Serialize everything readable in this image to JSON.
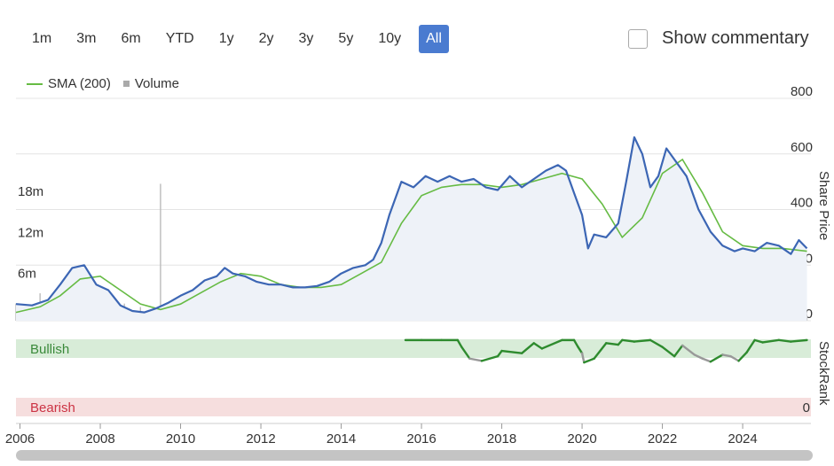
{
  "range_buttons": [
    {
      "label": "1m"
    },
    {
      "label": "3m"
    },
    {
      "label": "6m"
    },
    {
      "label": "YTD"
    },
    {
      "label": "1y"
    },
    {
      "label": "2y"
    },
    {
      "label": "3y"
    },
    {
      "label": "5y"
    },
    {
      "label": "10y"
    },
    {
      "label": "All",
      "active": true
    }
  ],
  "commentary": {
    "label": "Show commentary",
    "checked": false
  },
  "legend": {
    "sma_label": "SMA (200)",
    "volume_label": "Volume"
  },
  "colors": {
    "price": "#3c66b4",
    "sma": "#66bb44",
    "volume": "#bbbbbb",
    "bullish_band": "#d8ecd8",
    "bearish_band": "#f6dede",
    "bullish_text": "#3a8a3a",
    "bearish_text": "#cc3344",
    "stockrank_good": "#2e8b2e",
    "stockrank_neutral": "#999999",
    "active_button": "#4a7bd0"
  },
  "chart_data": [
    {
      "type": "line",
      "title": "",
      "x_ticks": [
        "2006",
        "2008",
        "2010",
        "2012",
        "2014",
        "2016",
        "2018",
        "2020",
        "2022",
        "2024"
      ],
      "y_right_label": "Share Price",
      "y_right_ticks": [
        "0.00",
        "200",
        "400",
        "600",
        "800"
      ],
      "y_right_range": [
        0,
        800
      ],
      "y_left_ticks": [
        "0",
        "6m",
        "12m",
        "18m"
      ],
      "x_range": [
        2005.9,
        2025.7
      ],
      "grid": true,
      "series": [
        {
          "name": "Share Price",
          "x": [
            2005.9,
            2006.3,
            2006.7,
            2007.0,
            2007.3,
            2007.6,
            2007.9,
            2008.2,
            2008.5,
            2008.8,
            2009.1,
            2009.4,
            2009.7,
            2010.0,
            2010.3,
            2010.6,
            2010.9,
            2011.1,
            2011.3,
            2011.6,
            2011.9,
            2012.2,
            2012.5,
            2012.8,
            2013.1,
            2013.4,
            2013.7,
            2014.0,
            2014.3,
            2014.6,
            2014.8,
            2015.0,
            2015.2,
            2015.5,
            2015.8,
            2016.1,
            2016.4,
            2016.7,
            2017.0,
            2017.3,
            2017.6,
            2017.9,
            2018.2,
            2018.5,
            2018.8,
            2019.1,
            2019.4,
            2019.6,
            2019.8,
            2020.0,
            2020.15,
            2020.3,
            2020.6,
            2020.9,
            2021.1,
            2021.3,
            2021.5,
            2021.7,
            2021.9,
            2022.1,
            2022.3,
            2022.6,
            2022.9,
            2023.2,
            2023.5,
            2023.8,
            2024.0,
            2024.3,
            2024.6,
            2024.9,
            2025.2,
            2025.4,
            2025.6
          ],
          "y": [
            60,
            55,
            75,
            130,
            190,
            200,
            130,
            110,
            55,
            35,
            30,
            45,
            65,
            90,
            110,
            145,
            160,
            190,
            170,
            160,
            140,
            130,
            130,
            120,
            120,
            125,
            140,
            170,
            190,
            200,
            220,
            280,
            380,
            500,
            480,
            520,
            500,
            520,
            500,
            510,
            480,
            470,
            520,
            480,
            510,
            540,
            560,
            540,
            460,
            380,
            260,
            310,
            300,
            350,
            500,
            660,
            600,
            480,
            520,
            620,
            580,
            520,
            400,
            320,
            270,
            250,
            260,
            250,
            280,
            270,
            240,
            290,
            260
          ]
        },
        {
          "name": "SMA (200)",
          "x": [
            2005.9,
            2006.5,
            2007.0,
            2007.5,
            2008.0,
            2008.5,
            2009.0,
            2009.5,
            2010.0,
            2010.5,
            2011.0,
            2011.5,
            2012.0,
            2012.5,
            2013.0,
            2013.5,
            2014.0,
            2014.5,
            2015.0,
            2015.5,
            2016.0,
            2016.5,
            2017.0,
            2017.5,
            2018.0,
            2018.5,
            2019.0,
            2019.5,
            2020.0,
            2020.5,
            2021.0,
            2021.5,
            2022.0,
            2022.5,
            2023.0,
            2023.5,
            2024.0,
            2024.5,
            2025.0,
            2025.6
          ],
          "y": [
            30,
            50,
            90,
            150,
            160,
            110,
            60,
            40,
            60,
            100,
            140,
            170,
            160,
            130,
            120,
            120,
            130,
            170,
            210,
            350,
            450,
            480,
            490,
            490,
            480,
            490,
            510,
            530,
            510,
            420,
            300,
            370,
            530,
            580,
            460,
            320,
            270,
            260,
            260,
            250
          ]
        }
      ],
      "volume": {
        "unit": "m",
        "range": [
          0,
          22
        ],
        "x": [
          2005.9,
          2006.5,
          2007.0,
          2007.5,
          2007.8,
          2008.2,
          2008.6,
          2009.0,
          2009.5,
          2010.0,
          2010.5,
          2011.0,
          2011.5,
          2012.0,
          2013.0,
          2014.0,
          2015.0,
          2016.0,
          2017.0,
          2017.3,
          2018.0,
          2019.0,
          2020.0,
          2020.2,
          2021.0,
          2021.5,
          2022.0,
          2022.3,
          2023.0,
          2024.0,
          2025.0,
          2025.6
        ],
        "y": [
          2.5,
          4,
          4.5,
          6.5,
          6,
          3.5,
          2.5,
          2,
          20,
          2,
          1.5,
          2.5,
          1.5,
          1.5,
          1.5,
          1,
          1.5,
          1.5,
          3,
          5,
          1.5,
          1.5,
          3,
          7,
          1.5,
          1.5,
          1.5,
          3,
          1,
          1,
          1,
          0.8
        ]
      }
    },
    {
      "type": "area",
      "title": "StockRank",
      "bands": [
        "Bullish",
        "Bearish"
      ],
      "y_ticks": [
        "0"
      ],
      "y_range": [
        0,
        100
      ],
      "series": [
        {
          "name": "StockRank",
          "x": [
            2015.6,
            2016.0,
            2016.5,
            2016.9,
            2017.0,
            2017.2,
            2017.5,
            2017.9,
            2018.0,
            2018.5,
            2018.8,
            2019.0,
            2019.5,
            2019.8,
            2019.9,
            2020.0,
            2020.05,
            2020.3,
            2020.6,
            2020.9,
            2021.0,
            2021.3,
            2021.7,
            2022.0,
            2022.3,
            2022.5,
            2022.8,
            2023.0,
            2023.2,
            2023.5,
            2023.7,
            2023.9,
            2024.1,
            2024.3,
            2024.5,
            2024.9,
            2025.2,
            2025.6
          ],
          "y": [
            99,
            99,
            99,
            99,
            90,
            75,
            72,
            78,
            85,
            82,
            95,
            88,
            99,
            99,
            90,
            82,
            70,
            75,
            95,
            93,
            99,
            97,
            99,
            90,
            78,
            92,
            80,
            75,
            71,
            80,
            78,
            72,
            83,
            99,
            96,
            99,
            97,
            99
          ],
          "colors": [
            "good",
            "good",
            "good",
            "good",
            "good",
            "good",
            "neutral",
            "good",
            "good",
            "good",
            "good",
            "good",
            "good",
            "good",
            "good",
            "good",
            "neutral",
            "good",
            "good",
            "good",
            "good",
            "good",
            "good",
            "good",
            "good",
            "good",
            "neutral",
            "neutral",
            "neutral",
            "good",
            "neutral",
            "neutral",
            "good",
            "good",
            "good",
            "good",
            "good",
            "good"
          ]
        }
      ]
    }
  ],
  "xaxis_ticks": [
    "2006",
    "2008",
    "2010",
    "2012",
    "2014",
    "2016",
    "2018",
    "2020",
    "2022",
    "2024"
  ]
}
